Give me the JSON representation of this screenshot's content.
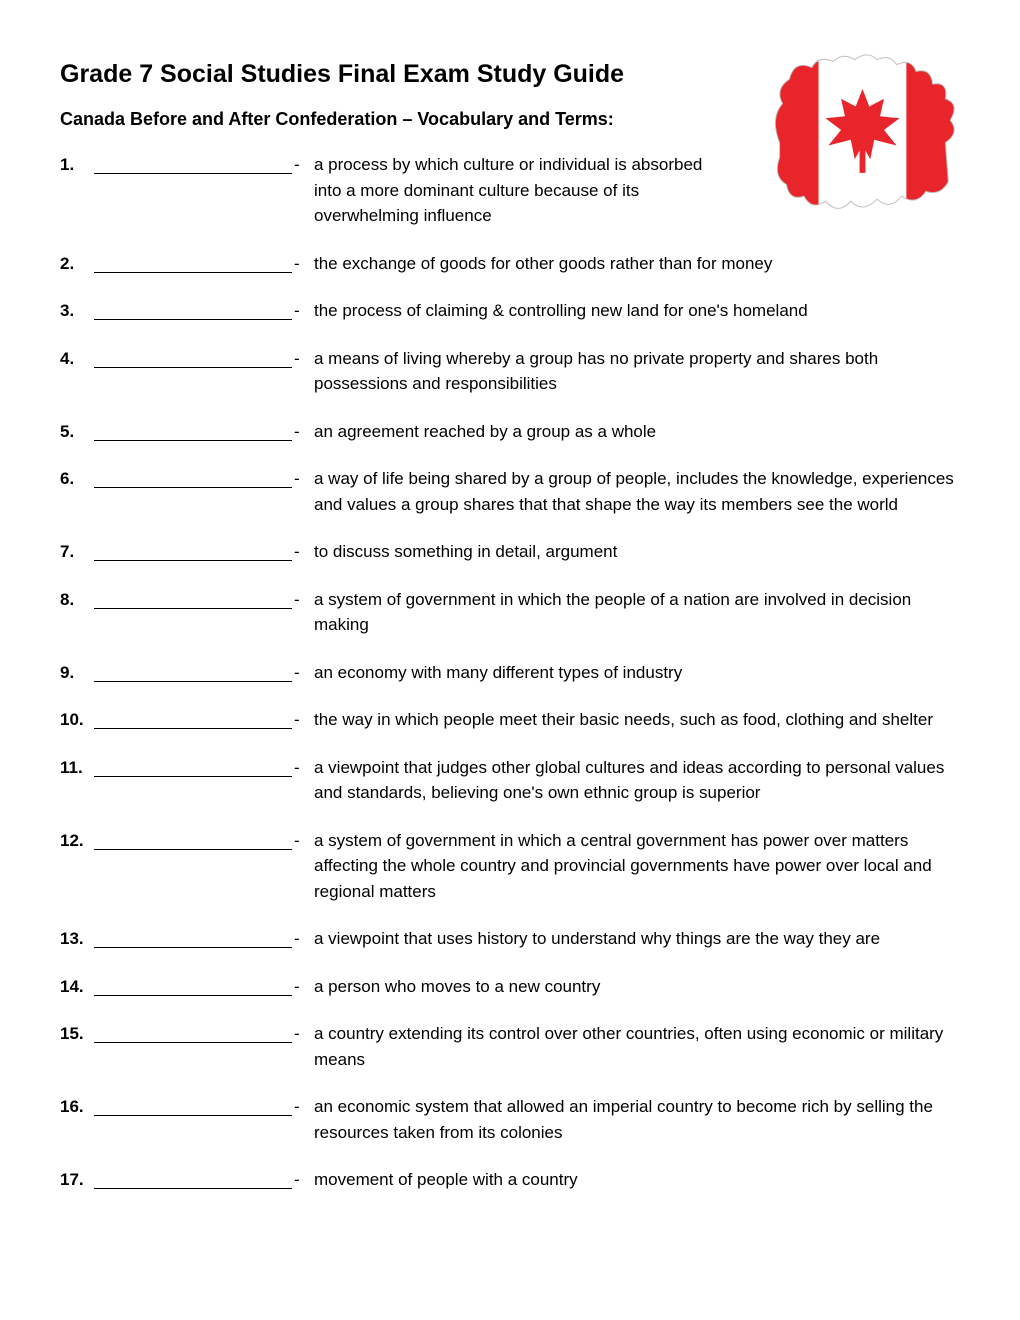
{
  "title": "Grade 7 Social Studies Final Exam Study Guide",
  "subtitle": "Canada Before and After Confederation – Vocabulary and Terms:",
  "map_colors": {
    "red": "#e8252a",
    "white": "#ffffff",
    "outline": "#bfbfbf"
  },
  "terms": [
    {
      "n": "1.",
      "def": "a process by which culture or individual is absorbed into a more dominant culture because of its overwhelming influence"
    },
    {
      "n": "2.",
      "def": "the exchange of goods for other goods rather than for money"
    },
    {
      "n": "3.",
      "def": "the process of claiming & controlling new land for one's homeland"
    },
    {
      "n": "4.",
      "def": "a means of living whereby a group has no private property and shares both possessions and responsibilities"
    },
    {
      "n": "5.",
      "def": "an agreement reached by a group as a whole"
    },
    {
      "n": "6.",
      "def": "a way of life being shared by a group of people, includes the knowledge, experiences and values a group shares that that shape the way its members see the world"
    },
    {
      "n": "7.",
      "def": "to discuss something in detail, argument"
    },
    {
      "n": "8.",
      "def": "a system of government in which the people of a nation are involved in decision making"
    },
    {
      "n": "9.",
      "def": "an economy with many different types of industry"
    },
    {
      "n": "10.",
      "def": "the way in which people meet their basic needs, such as food, clothing and shelter"
    },
    {
      "n": "11.",
      "def": "a viewpoint that judges other global cultures and ideas according to personal values and standards, believing one's own ethnic group is superior"
    },
    {
      "n": "12.",
      "def": "a system of government in which a central government has power over matters affecting the whole country and provincial governments have power over local and regional matters"
    },
    {
      "n": "13.",
      "def": "a viewpoint that uses history to understand why things are the way they are"
    },
    {
      "n": "14.",
      "def": "a person who moves to a new country"
    },
    {
      "n": "15.",
      "def": "a country extending its control over other countries, often using economic or military means"
    },
    {
      "n": "16.",
      "def": "an economic system that allowed an imperial country to become rich by selling the resources taken from its colonies"
    },
    {
      "n": "17.",
      "def": "movement of people with a country"
    }
  ]
}
